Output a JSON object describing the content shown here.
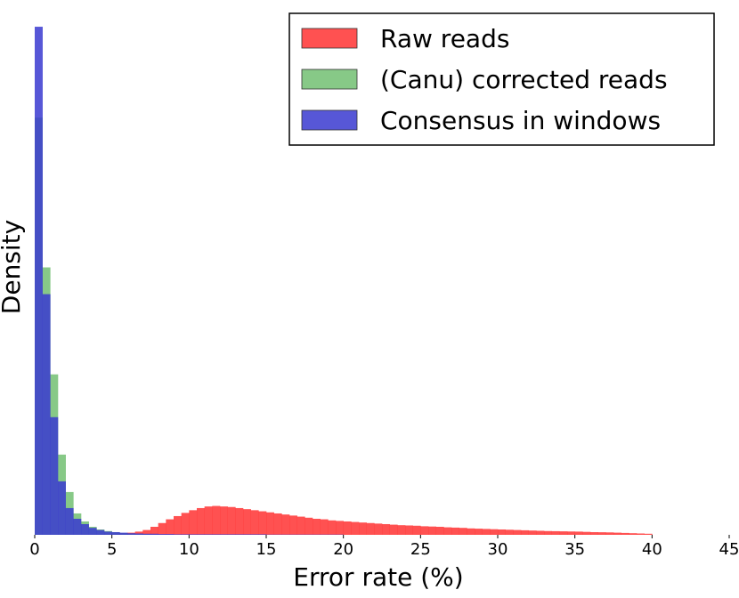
{
  "chart_data": {
    "type": "histogram",
    "x_label": "Error rate (%)",
    "y_label": "Density",
    "xlim": [
      0,
      45
    ],
    "xticks": [
      0,
      5,
      10,
      15,
      20,
      25,
      30,
      35,
      40,
      45
    ],
    "ylim": [
      0,
      100
    ],
    "grid": false,
    "legend": "upper right",
    "bins": [
      0,
      0.5,
      1,
      1.5,
      2,
      2.5,
      3,
      3.5,
      4,
      4.5,
      5,
      5.5,
      6,
      6.5,
      7,
      7.5,
      8,
      8.5,
      9,
      9.5,
      10,
      10.5,
      11,
      11.5,
      12,
      12.5,
      13,
      13.5,
      14,
      14.5,
      15,
      15.5,
      16,
      16.5,
      17,
      17.5,
      18,
      18.5,
      19,
      19.5,
      20,
      20.5,
      21,
      21.5,
      22,
      22.5,
      23,
      23.5,
      24,
      24.5,
      25,
      25.5,
      26,
      26.5,
      27,
      27.5,
      28,
      28.5,
      29,
      29.5,
      30,
      30.5,
      31,
      31.5,
      32,
      32.5,
      33,
      33.5,
      34,
      34.5,
      35,
      35.5,
      36,
      36.5,
      37,
      37.5,
      38,
      38.5,
      39,
      39.5,
      40
    ],
    "series": [
      {
        "name": "Raw reads",
        "color": "#ff3333",
        "values": [
          0,
          0,
          0,
          0,
          0.05,
          0.05,
          0.1,
          0.1,
          0.15,
          0.2,
          0.25,
          0.3,
          0.4,
          0.6,
          0.9,
          1.5,
          2.2,
          2.9,
          3.5,
          4.1,
          4.6,
          5.0,
          5.3,
          5.4,
          5.3,
          5.2,
          5.0,
          4.8,
          4.6,
          4.4,
          4.2,
          4.0,
          3.8,
          3.6,
          3.4,
          3.2,
          3.0,
          2.9,
          2.7,
          2.6,
          2.5,
          2.4,
          2.3,
          2.2,
          2.1,
          2.0,
          1.9,
          1.8,
          1.75,
          1.7,
          1.6,
          1.55,
          1.5,
          1.4,
          1.35,
          1.3,
          1.2,
          1.15,
          1.1,
          1.05,
          1.0,
          0.95,
          0.9,
          0.85,
          0.8,
          0.75,
          0.7,
          0.68,
          0.65,
          0.62,
          0.6,
          0.55,
          0.5,
          0.48,
          0.45,
          0.4,
          0.35,
          0.3,
          0.25,
          0.2
        ]
      },
      {
        "name": "(Canu) corrected reads",
        "color": "#72bf72",
        "values": [
          78,
          50,
          30,
          15,
          8,
          4,
          2.5,
          1.5,
          1,
          0.7,
          0.5,
          0.3,
          0.2,
          0.15,
          0.1,
          0,
          0,
          0,
          0,
          0,
          0,
          0,
          0,
          0,
          0,
          0,
          0,
          0,
          0,
          0,
          0,
          0,
          0,
          0,
          0,
          0,
          0,
          0,
          0,
          0,
          0,
          0,
          0,
          0,
          0,
          0,
          0,
          0,
          0,
          0,
          0,
          0,
          0,
          0,
          0,
          0,
          0,
          0,
          0,
          0,
          0,
          0,
          0,
          0,
          0,
          0,
          0,
          0,
          0,
          0,
          0,
          0,
          0,
          0,
          0,
          0,
          0,
          0,
          0,
          0
        ]
      },
      {
        "name": "Consensus in windows",
        "color": "#3a3ad0",
        "values": [
          95,
          45,
          22,
          10,
          5,
          3,
          2,
          1.3,
          0.9,
          0.6,
          0.5,
          0.4,
          0.3,
          0.25,
          0.2,
          0.2,
          0.15,
          0.15,
          0.1,
          0.1,
          0.1,
          0.1,
          0.1,
          0.1,
          0.1,
          0.1,
          0.1,
          0.1,
          0.1,
          0.1,
          0.05,
          0.05,
          0.05,
          0.05,
          0.05,
          0.05,
          0.05,
          0.05,
          0.05,
          0.05,
          0,
          0,
          0,
          0,
          0,
          0,
          0,
          0,
          0,
          0,
          0,
          0,
          0,
          0,
          0,
          0,
          0,
          0,
          0,
          0,
          0,
          0,
          0,
          0,
          0,
          0,
          0,
          0,
          0,
          0,
          0,
          0,
          0,
          0,
          0,
          0,
          0,
          0,
          0,
          0
        ]
      }
    ]
  }
}
